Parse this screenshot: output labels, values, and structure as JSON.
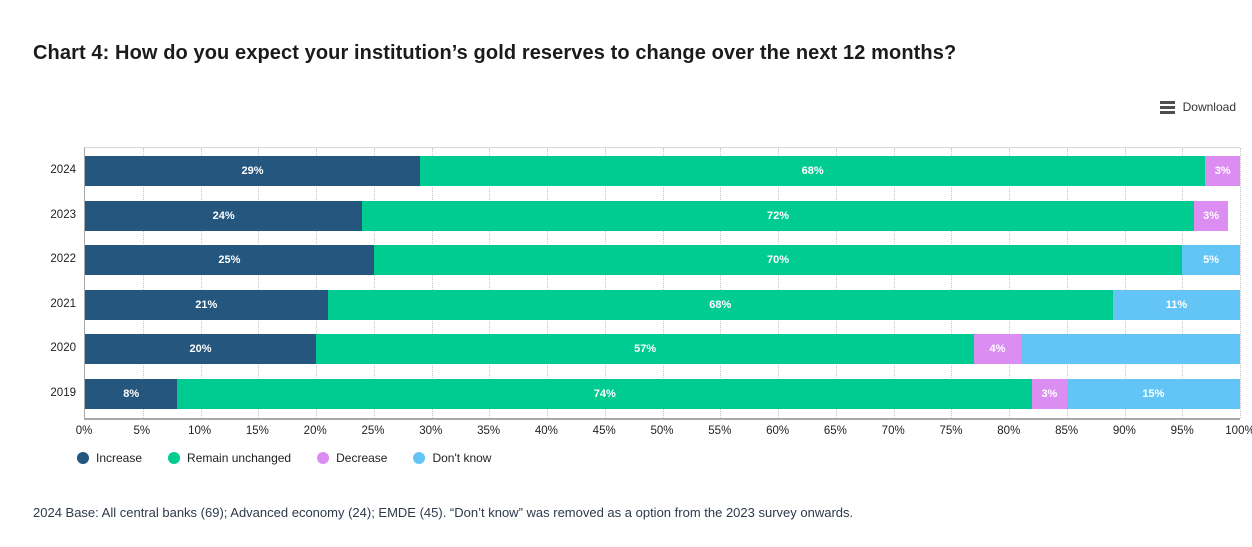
{
  "header": {
    "title": "Chart 4: How do you expect your institution’s gold reserves to change over the next 12 months?"
  },
  "toolbar": {
    "download_label": "Download",
    "menu_icon": "hamburger-icon"
  },
  "chart_data": {
    "type": "bar",
    "stacked": true,
    "orientation": "horizontal",
    "title": "Chart 4: How do you expect your institution’s gold reserves to change over the next 12 months?",
    "categories": [
      "2024",
      "2023",
      "2022",
      "2021",
      "2020",
      "2019"
    ],
    "series": [
      {
        "name": "Increase",
        "color": "#24567e",
        "values": [
          29,
          24,
          25,
          21,
          20,
          8
        ],
        "labels": [
          "29%",
          "24%",
          "25%",
          "21%",
          "20%",
          "8%"
        ]
      },
      {
        "name": "Remain unchanged",
        "color": "#00cc92",
        "values": [
          68,
          72,
          70,
          68,
          57,
          74
        ],
        "labels": [
          "68%",
          "72%",
          "70%",
          "68%",
          "57%",
          "74%"
        ]
      },
      {
        "name": "Decrease",
        "color": "#db8df2",
        "values": [
          3,
          3,
          0,
          0,
          4,
          3
        ],
        "labels": [
          "3%",
          "3%",
          "",
          "",
          "4%",
          "3%"
        ]
      },
      {
        "name": "Don't know",
        "color": "#62c5f6",
        "values": [
          0,
          0,
          5,
          11,
          19,
          15
        ],
        "labels": [
          "",
          "",
          "5%",
          "11%",
          "",
          "15%"
        ]
      }
    ],
    "x_ticks": [
      "0%",
      "5%",
      "10%",
      "15%",
      "20%",
      "25%",
      "30%",
      "35%",
      "40%",
      "45%",
      "50%",
      "55%",
      "60%",
      "65%",
      "70%",
      "75%",
      "80%",
      "85%",
      "90%",
      "95%",
      "100%"
    ],
    "xlim": [
      0,
      100
    ],
    "grid": "vertical-dotted",
    "legend_position": "bottom-left",
    "bar_label_color": "#ffffff"
  },
  "footer": {
    "note": "2024 Base: All central banks (69); Advanced economy (24); EMDE (45). “Don’t know” was removed as a option from the 2023 survey onwards."
  }
}
